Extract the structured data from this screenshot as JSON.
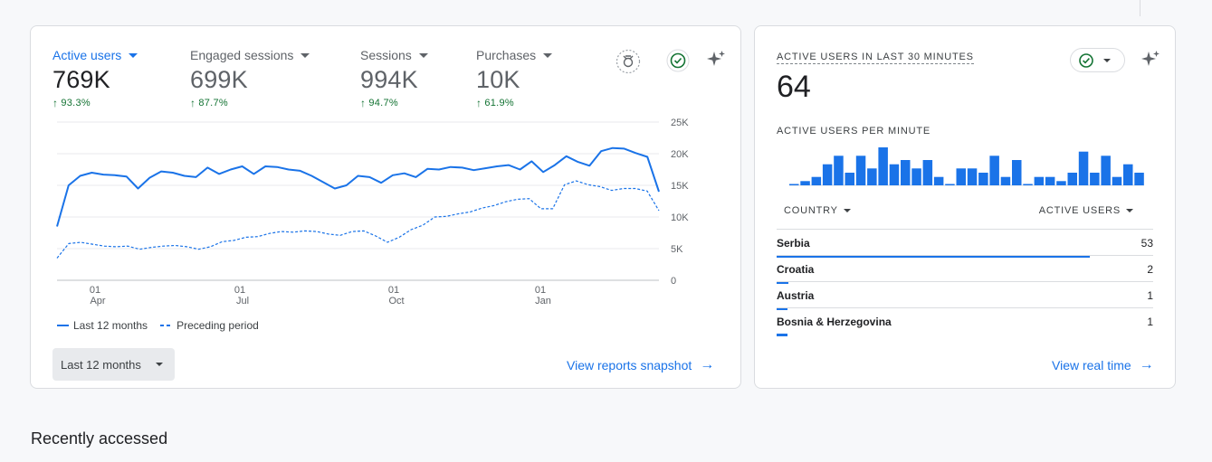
{
  "metrics": [
    {
      "label": "Active users",
      "value": "769K",
      "change": "93.3%",
      "active": true
    },
    {
      "label": "Engaged sessions",
      "value": "699K",
      "change": "87.7%",
      "active": false
    },
    {
      "label": "Sessions",
      "value": "994K",
      "change": "94.7%",
      "active": false
    },
    {
      "label": "Purchases",
      "value": "10K",
      "change": "61.9%",
      "active": false
    }
  ],
  "chart_data": {
    "type": "line",
    "title": "",
    "xlabel": "",
    "ylabel": "",
    "y_ticks": [
      "25K",
      "20K",
      "15K",
      "10K",
      "5K",
      "0"
    ],
    "ylim": [
      0,
      25000
    ],
    "x_ticks": [
      {
        "day": "01",
        "month": "Apr"
      },
      {
        "day": "01",
        "month": "Jul"
      },
      {
        "day": "01",
        "month": "Oct"
      },
      {
        "day": "01",
        "month": "Jan"
      }
    ],
    "series": [
      {
        "name": "Last 12 months",
        "style": "solid",
        "values": [
          8500,
          15000,
          16500,
          17000,
          16700,
          16600,
          16400,
          14500,
          16200,
          17200,
          17000,
          16500,
          16300,
          17800,
          16800,
          17500,
          18000,
          16800,
          18000,
          17900,
          17500,
          17300,
          16500,
          15500,
          14500,
          15000,
          16500,
          16300,
          15400,
          16600,
          16900,
          16300,
          17600,
          17500,
          17900,
          17800,
          17400,
          17700,
          18000,
          18200,
          17500,
          18800,
          17100,
          18200,
          19600,
          18700,
          18100,
          20400,
          20900,
          20800,
          20100,
          19500,
          14000
        ]
      },
      {
        "name": "Preceding period",
        "style": "dashed",
        "values": [
          3500,
          5800,
          6000,
          5700,
          5400,
          5300,
          5400,
          4900,
          5200,
          5400,
          5500,
          5300,
          4900,
          5300,
          6100,
          6300,
          6800,
          6900,
          7400,
          7700,
          7600,
          7800,
          7700,
          7300,
          7100,
          7700,
          7800,
          7000,
          6000,
          6800,
          8000,
          8700,
          10000,
          10100,
          10500,
          10800,
          11400,
          11800,
          12400,
          12800,
          12900,
          11300,
          11300,
          15100,
          15700,
          15100,
          14800,
          14200,
          14500,
          14500,
          14100,
          11000
        ]
      }
    ],
    "legend": [
      "Last 12 months",
      "Preceding period"
    ]
  },
  "date_range": "Last 12 months",
  "view_reports": "View reports snapshot",
  "realtime": {
    "title": "ACTIVE USERS IN LAST 30 MINUTES",
    "value": "64",
    "subtitle": "ACTIVE USERS PER MINUTE",
    "per_minute": [
      0,
      1,
      2,
      5,
      7,
      3,
      7,
      4,
      9,
      5,
      6,
      4,
      6,
      2,
      0,
      4,
      4,
      3,
      7,
      2,
      6,
      0,
      2,
      2,
      1,
      3,
      8,
      3,
      7,
      2,
      5,
      3
    ],
    "col_country": "COUNTRY",
    "col_users": "ACTIVE USERS",
    "rows": [
      {
        "country": "Serbia",
        "users": 53,
        "count_label": "53"
      },
      {
        "country": "Croatia",
        "users": 2,
        "count_label": "2"
      },
      {
        "country": "Austria",
        "users": 1,
        "count_label": "1"
      },
      {
        "country": "Bosnia & Herzegovina",
        "users": 1,
        "count_label": "1"
      }
    ],
    "link": "View real time"
  },
  "recently_accessed": "Recently accessed",
  "colors": {
    "accent": "#1a73e8",
    "positive": "#137333"
  }
}
